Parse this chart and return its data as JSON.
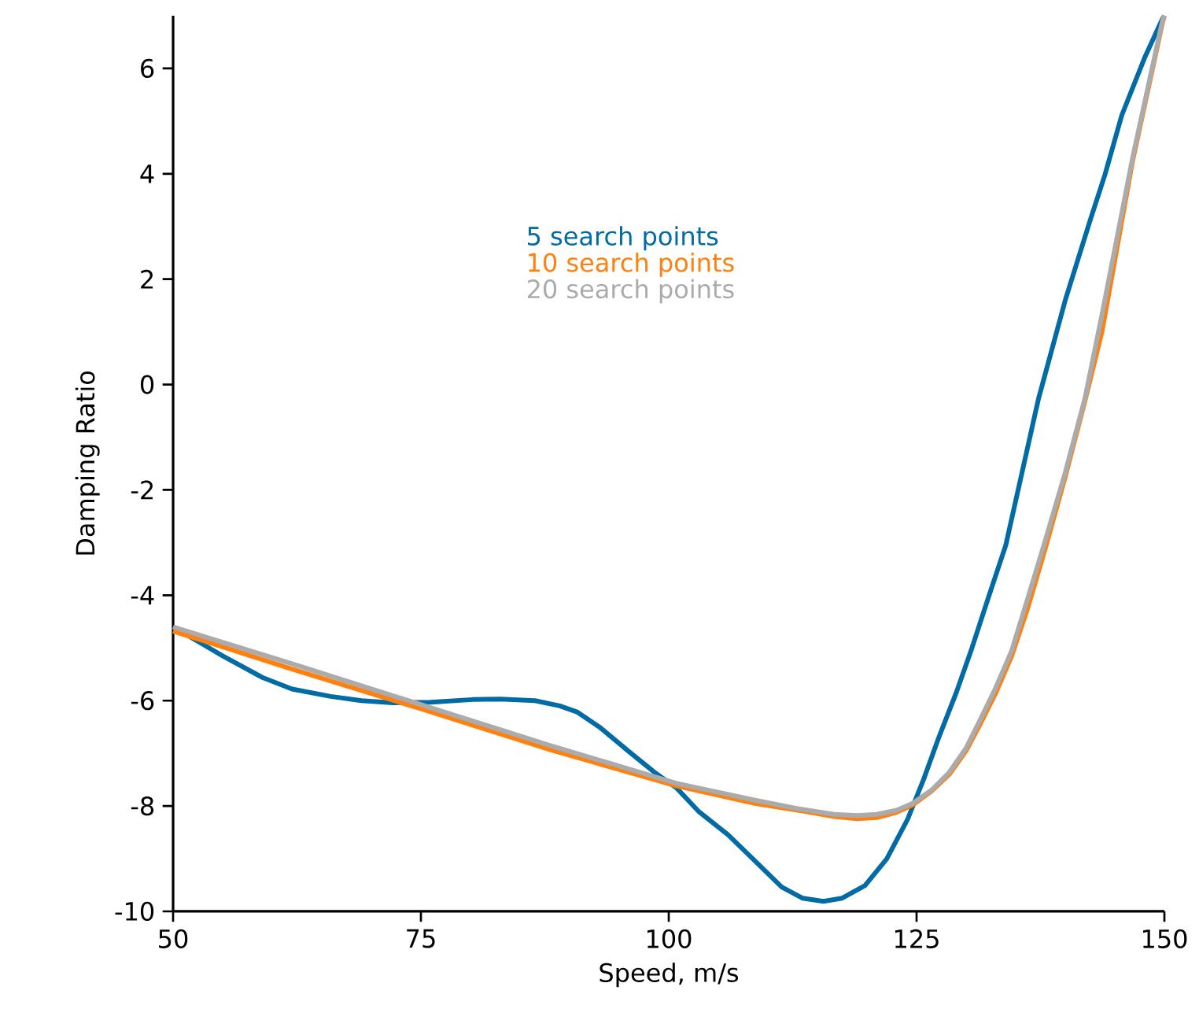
{
  "chart_data": {
    "type": "line",
    "xlabel": "Speed, m/s",
    "ylabel": "Damping Ratio",
    "xlim": [
      50,
      150
    ],
    "ylim": [
      -10,
      7
    ],
    "xticks": [
      50,
      75,
      100,
      125,
      150
    ],
    "yticks": [
      -10,
      -8,
      -6,
      -4,
      -2,
      0,
      2,
      4,
      6
    ],
    "grid": false,
    "legend": "top",
    "marker": "none",
    "line_style": "solid",
    "series": [
      {
        "name": "5 search points",
        "color": "#006ba4",
        "x": [
          50,
          55,
          59,
          62,
          65.9,
          69,
          72.2,
          76,
          80.2,
          83,
          86.5,
          89,
          90.8,
          93,
          96,
          98.5,
          100.8,
          103,
          106,
          109,
          111.4,
          113.5,
          115.6,
          117.5,
          119.8,
          122,
          124.1,
          125.7,
          127.3,
          129,
          130.5,
          132.2,
          134,
          137.3,
          140,
          142.5,
          144,
          145.7,
          148,
          149.8,
          150
        ],
        "values": [
          -4.6,
          -5.15,
          -5.56,
          -5.78,
          -5.92,
          -6.0,
          -6.04,
          -6.03,
          -5.98,
          -5.97,
          -6.0,
          -6.1,
          -6.22,
          -6.5,
          -6.97,
          -7.35,
          -7.66,
          -8.1,
          -8.55,
          -9.1,
          -9.54,
          -9.75,
          -9.81,
          -9.75,
          -9.51,
          -9.0,
          -8.25,
          -7.5,
          -6.67,
          -5.85,
          -5.05,
          -4.07,
          -3.05,
          -0.27,
          1.6,
          3.11,
          3.98,
          5.11,
          6.2,
          6.94,
          7.0
        ]
      },
      {
        "name": "10 search points",
        "color": "#ff800e",
        "x": [
          50,
          62,
          74.9,
          88,
          100.8,
          108.7,
          113,
          116.7,
          119,
          121,
          123,
          124.6,
          126.5,
          128.3,
          130,
          131.4,
          133,
          134.6,
          136.2,
          138,
          140,
          142,
          143.7,
          146.8,
          149.8,
          150
        ],
        "values": [
          -4.68,
          -5.4,
          -6.15,
          -6.93,
          -7.62,
          -7.95,
          -8.08,
          -8.2,
          -8.24,
          -8.22,
          -8.12,
          -7.98,
          -7.72,
          -7.4,
          -6.95,
          -6.45,
          -5.85,
          -5.15,
          -4.25,
          -3.1,
          -1.75,
          -0.3,
          1.0,
          4.25,
          6.86,
          7.0
        ]
      },
      {
        "name": "20 search points",
        "color": "#ababab",
        "x": [
          50,
          62,
          74.9,
          88,
          100.8,
          108.7,
          113,
          116.7,
          119,
          121,
          123,
          124.6,
          126.5,
          128.3,
          130,
          131.4,
          133,
          134.6,
          136.2,
          138,
          140,
          142,
          143.7,
          146.8,
          149.8,
          150
        ],
        "values": [
          -4.6,
          -5.3,
          -6.07,
          -6.85,
          -7.57,
          -7.89,
          -8.05,
          -8.16,
          -8.18,
          -8.16,
          -8.08,
          -7.95,
          -7.7,
          -7.36,
          -6.9,
          -6.37,
          -5.75,
          -5.05,
          -4.07,
          -2.95,
          -1.67,
          -0.25,
          1.32,
          4.31,
          6.9,
          7.0
        ]
      }
    ]
  }
}
